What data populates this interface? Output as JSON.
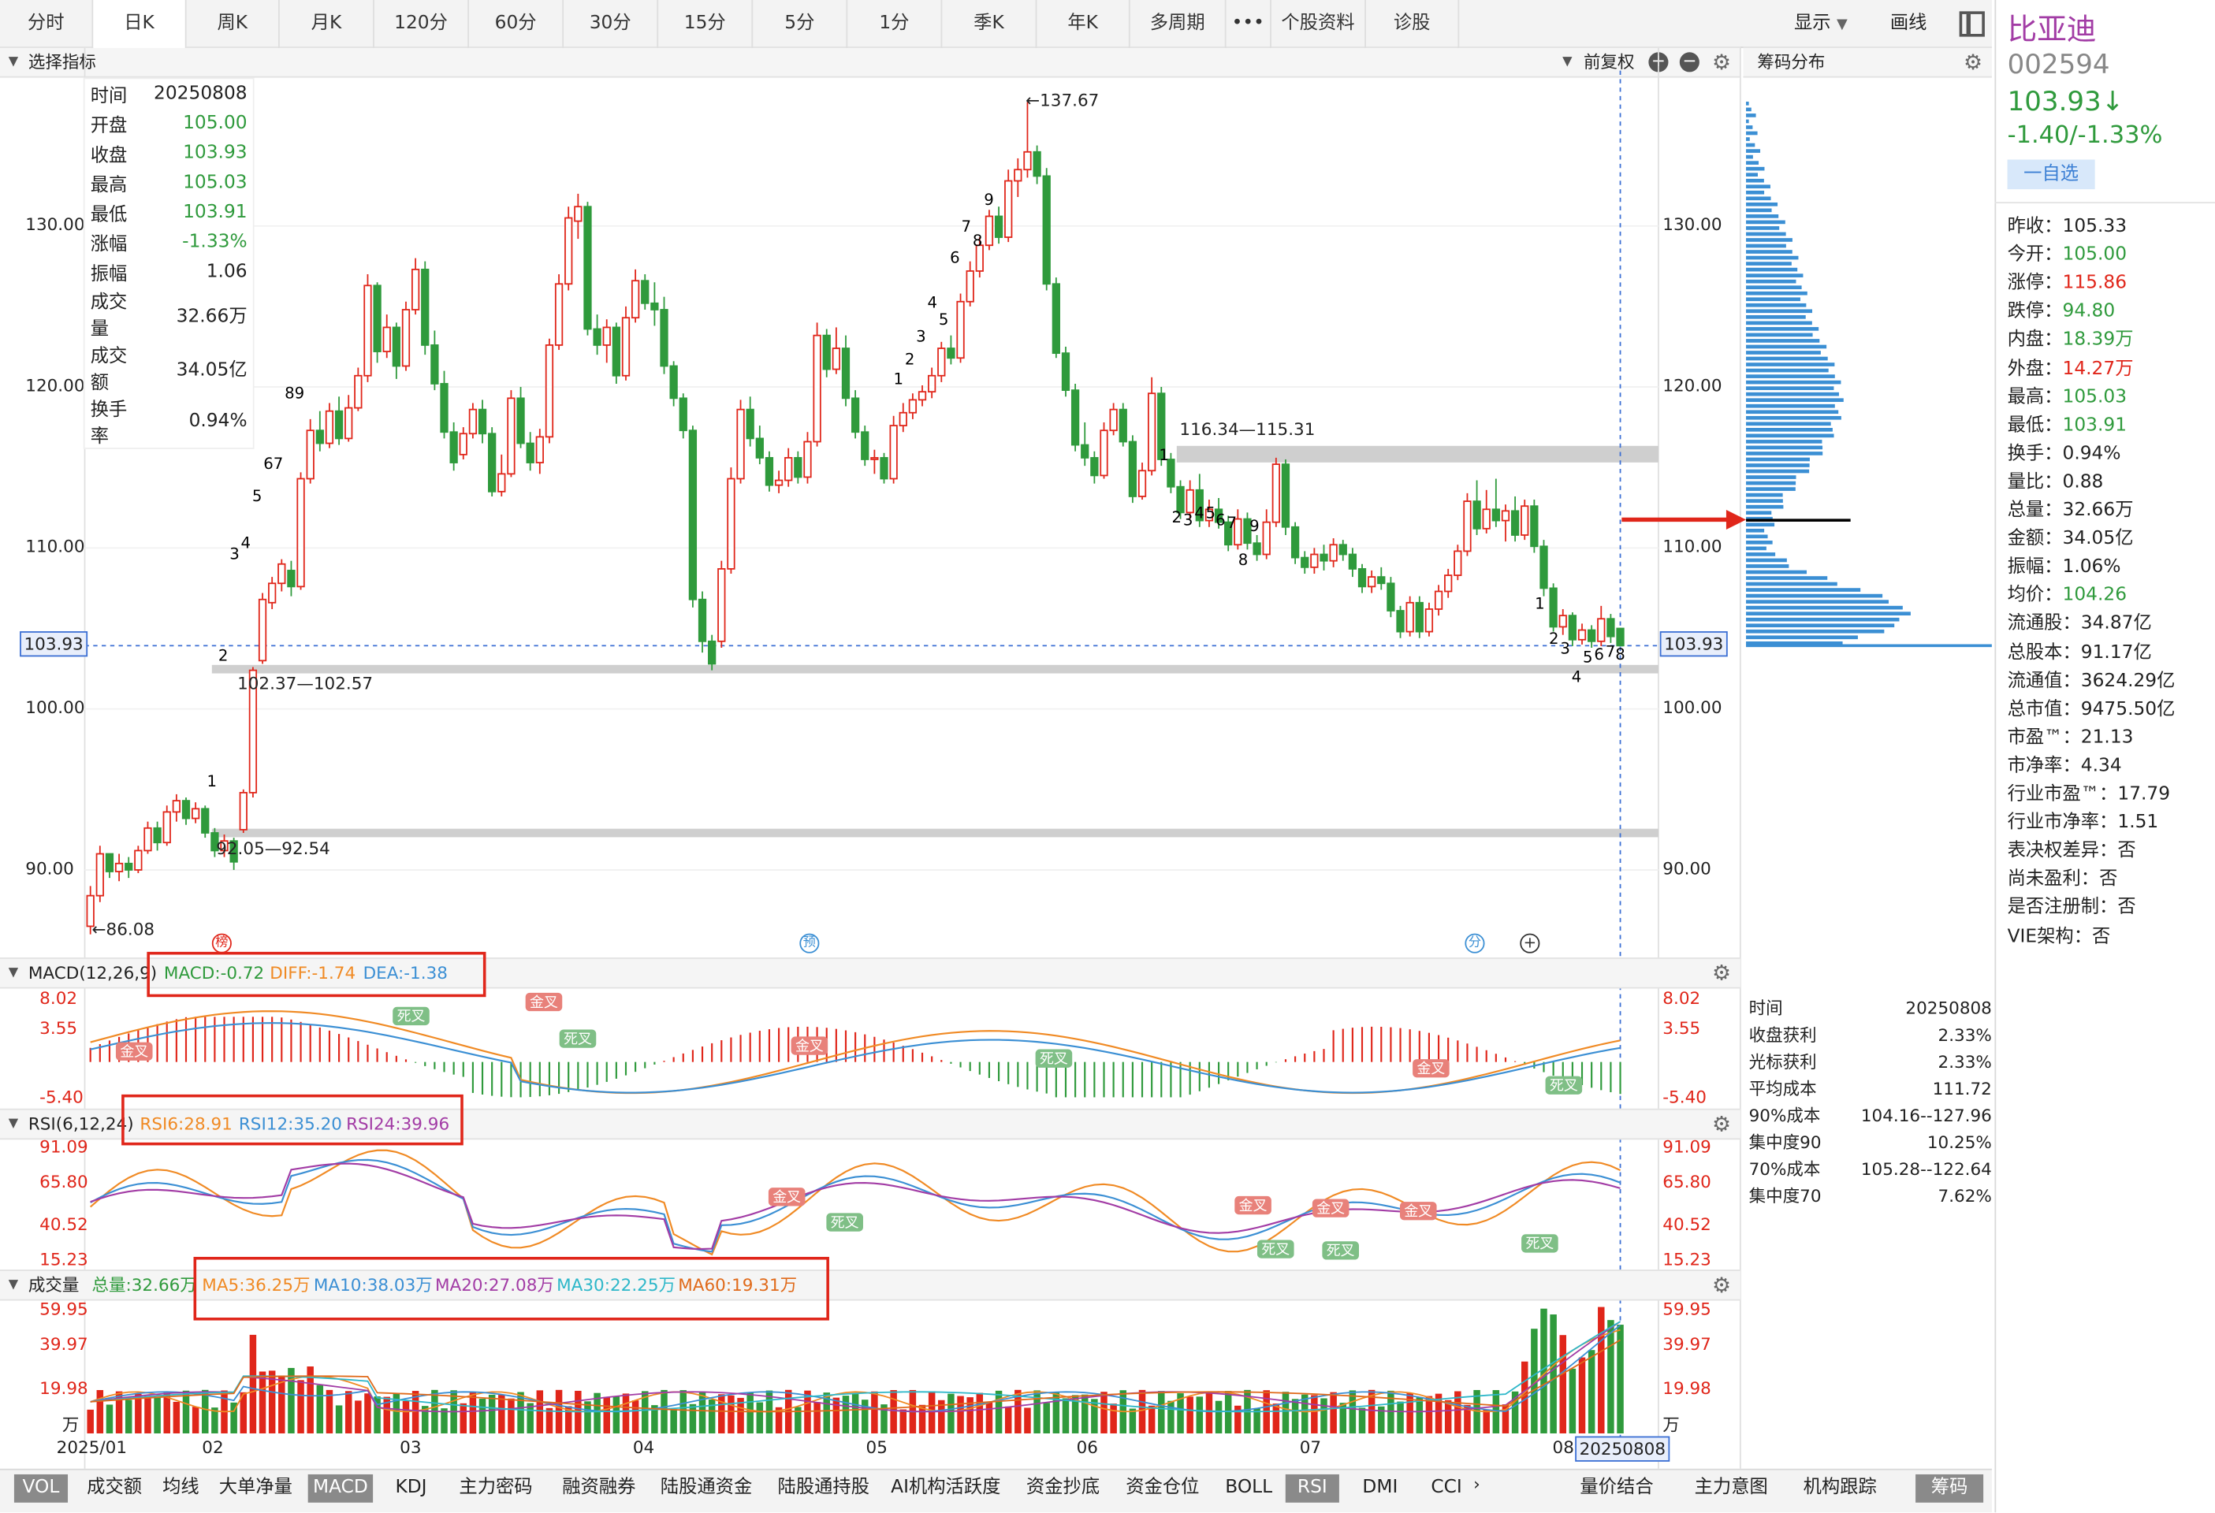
{
  "period_tabs": [
    "分时",
    "日K",
    "周K",
    "月K",
    "120分",
    "60分",
    "30分",
    "15分",
    "5分",
    "1分",
    "季K",
    "年K",
    "多周期",
    "•••",
    "个股资料",
    "诊股"
  ],
  "active_tab": "日K",
  "toolbar_right": {
    "display": "显示",
    "draw": "画线"
  },
  "main_header": {
    "indicator_select": "选择指标",
    "adjust": "前复权"
  },
  "chip_panel_title": "筹码分布",
  "stock": {
    "name": "比亚迪",
    "code": "002594",
    "price": "103.93↓",
    "change": "-1.40/-1.33%",
    "watch_button": "一自选",
    "name_color": "#a23ca5",
    "down_color": "#2f9a3c",
    "up_color": "#e0261a"
  },
  "stats": [
    {
      "label": "昨收：",
      "value": "105.33",
      "color": "#222"
    },
    {
      "label": "今开：",
      "value": "105.00",
      "color": "#2f9a3c"
    },
    {
      "label": "涨停：",
      "value": "115.86",
      "color": "#e0261a"
    },
    {
      "label": "跌停：",
      "value": "94.80",
      "color": "#2f9a3c"
    },
    {
      "label": "内盘：",
      "value": "18.39万",
      "color": "#2f9a3c"
    },
    {
      "label": "外盘：",
      "value": "14.27万",
      "color": "#e0261a"
    },
    {
      "label": "最高：",
      "value": "105.03",
      "color": "#2f9a3c"
    },
    {
      "label": "最低：",
      "value": "103.91",
      "color": "#2f9a3c"
    },
    {
      "label": "换手：",
      "value": "0.94%",
      "color": "#222"
    },
    {
      "label": "量比：",
      "value": "0.88",
      "color": "#222"
    },
    {
      "label": "总量：",
      "value": "32.66万",
      "color": "#222"
    },
    {
      "label": "金额：",
      "value": "34.05亿",
      "color": "#222"
    },
    {
      "label": "振幅：",
      "value": "1.06%",
      "color": "#222"
    },
    {
      "label": "均价：",
      "value": "104.26",
      "color": "#2f9a3c"
    },
    {
      "label": "流通股：",
      "value": "34.87亿",
      "color": "#222"
    },
    {
      "label": "总股本：",
      "value": "91.17亿",
      "color": "#222"
    },
    {
      "label": "流通值：",
      "value": "3624.29亿",
      "color": "#222"
    },
    {
      "label": "总市值：",
      "value": "9475.50亿",
      "color": "#222"
    },
    {
      "label": "市盈™：",
      "value": "21.13",
      "color": "#222"
    },
    {
      "label": "市净率：",
      "value": "4.34",
      "color": "#222"
    },
    {
      "label": "行业市盈™：",
      "value": "17.79",
      "color": "#222"
    },
    {
      "label": "行业市净率：",
      "value": "1.51",
      "color": "#222"
    },
    {
      "label": "表决权差异：",
      "value": "否",
      "color": "#222"
    },
    {
      "label": "尚未盈利：",
      "value": "否",
      "color": "#222"
    },
    {
      "label": "是否注册制：",
      "value": "否",
      "color": "#222"
    },
    {
      "label": "VIE架构：",
      "value": "否",
      "color": "#222"
    }
  ],
  "day_info": [
    {
      "label": "时间",
      "value": "20250808",
      "color": "#222"
    },
    {
      "label": "开盘",
      "value": "105.00",
      "color": "#2f9a3c"
    },
    {
      "label": "收盘",
      "value": "103.93",
      "color": "#2f9a3c"
    },
    {
      "label": "最高",
      "value": "105.03",
      "color": "#2f9a3c"
    },
    {
      "label": "最低",
      "value": "103.91",
      "color": "#2f9a3c"
    },
    {
      "label": "涨幅",
      "value": "-1.33%",
      "color": "#2f9a3c"
    },
    {
      "label": "振幅",
      "value": "1.06",
      "color": "#222"
    },
    {
      "label": "成交量",
      "value": "32.66万",
      "color": "#222"
    },
    {
      "label": "成交额",
      "value": "34.05亿",
      "color": "#222"
    },
    {
      "label": "换手率",
      "value": "0.94%",
      "color": "#222"
    }
  ],
  "chip_info": [
    {
      "label": "时间",
      "value": "20250808"
    },
    {
      "label": "收盘获利",
      "value": "2.33%"
    },
    {
      "label": "光标获利",
      "value": "2.33%"
    },
    {
      "label": "平均成本",
      "value": "111.72"
    },
    {
      "label": "90%成本",
      "value": "104.16--127.96"
    },
    {
      "label": "集中度90",
      "value": "10.25%"
    },
    {
      "label": "70%成本",
      "value": "105.28--122.64"
    },
    {
      "label": "集中度70",
      "value": "7.62%"
    }
  ],
  "price_axis": {
    "ticks": [
      "130.00",
      "120.00",
      "110.00",
      "100.00",
      "90.00"
    ],
    "current": "103.93",
    "high_label": "←137.67",
    "low_label": "←86.08"
  },
  "annotations": {
    "zone1": "116.34—115.31",
    "zone2": "102.37—102.57",
    "zone3": "92.05—92.54",
    "markers": [
      "榜",
      "预",
      "分",
      "+"
    ]
  },
  "macd": {
    "title": "MACD(12,26,9)",
    "macd": "MACD:-0.72",
    "diff": "DIFF:-1.74",
    "dea": "DEA:-1.38",
    "ticks": [
      "8.02",
      "3.55",
      "-5.40"
    ],
    "golden": "金叉",
    "dead": "死叉"
  },
  "rsi": {
    "title": "RSI(6,12,24)",
    "rsi6": "RSI6:28.91",
    "rsi12": "RSI12:35.20",
    "rsi24": "RSI24:39.96",
    "ticks": [
      "91.09",
      "65.80",
      "40.52",
      "15.23"
    ]
  },
  "volume": {
    "title": "成交量",
    "total": "总量:32.66万",
    "ma5": "MA5:36.25万",
    "ma10": "MA10:38.03万",
    "ma20": "MA20:27.08万",
    "ma30": "MA30:22.25万",
    "ma60": "MA60:19.31万",
    "ticks": [
      "59.95",
      "39.97",
      "19.98"
    ],
    "unit": "万"
  },
  "date_axis": [
    "2025/01",
    "02",
    "03",
    "04",
    "05",
    "06",
    "07",
    "08"
  ],
  "current_date": "20250808",
  "bottom_tabs": [
    "VOL",
    "成交额",
    "均线",
    "大单净量",
    "MACD",
    "KDJ",
    "主力密码",
    "融资融券",
    "陆股通资金",
    "陆股通持股",
    "AI机构活跃度",
    "资金抄底",
    "资金仓位",
    "BOLL",
    "RSI",
    "DMI",
    "CCI"
  ],
  "bottom_right_tabs": [
    "量价结合",
    "主力意图",
    "机构跟踪",
    "筹码"
  ],
  "chart_data": {
    "type": "candlestick",
    "y_range": [
      84,
      141
    ],
    "candles": [
      [
        86.5,
        88.4,
        86,
        89
      ],
      [
        88.4,
        91,
        88,
        91.5
      ],
      [
        91,
        89.9,
        89.5,
        91
      ],
      [
        89.9,
        90.4,
        89.3,
        91
      ],
      [
        90.4,
        90,
        89.5,
        90.8
      ],
      [
        90,
        91.2,
        89.8,
        91.5
      ],
      [
        91.2,
        92.6,
        91,
        93
      ],
      [
        92.6,
        91.7,
        91.2,
        93
      ],
      [
        91.7,
        93.6,
        91.5,
        94
      ],
      [
        93.6,
        94.3,
        93,
        94.7
      ],
      [
        94.3,
        93.2,
        92.8,
        94.5
      ],
      [
        93.2,
        93.8,
        92.9,
        94.2
      ],
      [
        93.8,
        92.3,
        92,
        94
      ],
      [
        92.3,
        91.2,
        90.8,
        92.6
      ],
      [
        91.2,
        91.8,
        90.8,
        92.2
      ],
      [
        91.8,
        90.5,
        90,
        92
      ],
      [
        92.5,
        94.8,
        92.3,
        95
      ],
      [
        94.8,
        102.4,
        94.5,
        102.6
      ],
      [
        103,
        106.8,
        102.8,
        107.2
      ],
      [
        106.6,
        107.8,
        106.2,
        108.2
      ],
      [
        107.8,
        109,
        107.3,
        109.3
      ],
      [
        108.6,
        107.6,
        107,
        109.2
      ],
      [
        107.6,
        114.3,
        107.4,
        114.7
      ],
      [
        114.3,
        117.3,
        114,
        118
      ],
      [
        117.3,
        116.5,
        116,
        118.5
      ],
      [
        116.5,
        118.5,
        116.2,
        119
      ],
      [
        118.5,
        116.8,
        116.4,
        119.4
      ],
      [
        116.8,
        118.7,
        116.6,
        119.5
      ],
      [
        118.7,
        120.7,
        118.5,
        121.2
      ],
      [
        120.7,
        126.3,
        120.3,
        127
      ],
      [
        126.3,
        122.2,
        121.5,
        126.5
      ],
      [
        122.2,
        123.7,
        121.8,
        124.5
      ],
      [
        123.7,
        121.3,
        120.5,
        124
      ],
      [
        121.3,
        124.8,
        121,
        125.3
      ],
      [
        124.8,
        127.3,
        124.5,
        128
      ],
      [
        127.3,
        122.6,
        122,
        127.8
      ],
      [
        122.6,
        120.2,
        119.8,
        123.5
      ],
      [
        120.2,
        117.2,
        116.8,
        121
      ],
      [
        117.2,
        115.3,
        114.8,
        117.8
      ],
      [
        115.8,
        117.1,
        115.5,
        117.5
      ],
      [
        117.1,
        118.6,
        116.8,
        119
      ],
      [
        118.6,
        117.1,
        116.5,
        119.2
      ],
      [
        117.1,
        113.5,
        113.2,
        117.5
      ],
      [
        113.5,
        114.6,
        113.2,
        115.8
      ],
      [
        114.6,
        119.3,
        114.4,
        119.8
      ],
      [
        119.3,
        116.5,
        116.2,
        120
      ],
      [
        116.5,
        115.3,
        114.8,
        117.2
      ],
      [
        115.3,
        116.9,
        114.6,
        117.4
      ],
      [
        116.9,
        122.6,
        116.5,
        123
      ],
      [
        122.6,
        126.4,
        122.3,
        127
      ],
      [
        126.4,
        130.5,
        126,
        131.2
      ],
      [
        130.3,
        131.2,
        129.2,
        132
      ],
      [
        131.2,
        123.6,
        123.2,
        131.5
      ],
      [
        123.6,
        122.6,
        122,
        124.5
      ],
      [
        122.6,
        123.7,
        121.5,
        124.2
      ],
      [
        123.7,
        120.7,
        120.2,
        124
      ],
      [
        120.7,
        124.3,
        120.4,
        125
      ],
      [
        124.3,
        126.6,
        124,
        127.3
      ],
      [
        126.6,
        125.2,
        124.8,
        127
      ],
      [
        125.2,
        124.8,
        123.8,
        126.5
      ],
      [
        124.8,
        121.3,
        120.8,
        125.6
      ],
      [
        121.3,
        119.3,
        118.8,
        121.6
      ],
      [
        119.3,
        117.3,
        116.8,
        119.6
      ],
      [
        117.3,
        106.8,
        106.3,
        117.6
      ],
      [
        106.8,
        104.2,
        103.5,
        107.3
      ],
      [
        104.2,
        102.8,
        102.4,
        104.6
      ],
      [
        104.2,
        108.7,
        103.8,
        109.2
      ],
      [
        108.7,
        114.3,
        108.4,
        115
      ],
      [
        114.3,
        118.6,
        114,
        119.2
      ],
      [
        118.6,
        116.8,
        116.3,
        119.4
      ],
      [
        116.8,
        115.6,
        115.2,
        117.6
      ],
      [
        115.6,
        113.9,
        113.5,
        116
      ],
      [
        113.9,
        114.2,
        113.4,
        114.8
      ],
      [
        114.2,
        115.6,
        113.8,
        116.2
      ],
      [
        115.6,
        114.4,
        114,
        116
      ],
      [
        114.4,
        116.6,
        114,
        117.2
      ],
      [
        116.6,
        123.2,
        116.3,
        124
      ],
      [
        123.2,
        121.1,
        120.6,
        123.6
      ],
      [
        121.1,
        122.4,
        120.8,
        123.7
      ],
      [
        122.4,
        119.3,
        118.8,
        123.2
      ],
      [
        119.3,
        117.2,
        116.8,
        119.8
      ],
      [
        117.2,
        115.5,
        115.1,
        117.6
      ],
      [
        115.5,
        115.6,
        114.6,
        116.1
      ],
      [
        115.6,
        114.3,
        114,
        115.9
      ],
      [
        114.3,
        117.6,
        114,
        118.2
      ],
      [
        117.6,
        118.4,
        117.2,
        119
      ],
      [
        118.4,
        119.2,
        118,
        119.6
      ],
      [
        119.2,
        119.7,
        118.8,
        120.1
      ],
      [
        119.7,
        120.7,
        119.3,
        121.2
      ],
      [
        120.7,
        122.4,
        120.3,
        122.8
      ],
      [
        122.4,
        121.8,
        121.4,
        123.2
      ],
      [
        121.8,
        125.3,
        121.5,
        125.8
      ],
      [
        125.3,
        127.2,
        125,
        127.8
      ],
      [
        127.2,
        128.8,
        126.8,
        129.3
      ],
      [
        128.8,
        130.6,
        128.5,
        131
      ],
      [
        130.6,
        129.3,
        128.9,
        131.2
      ],
      [
        129.3,
        132.8,
        129,
        133.5
      ],
      [
        132.8,
        133.5,
        131.8,
        134.2
      ],
      [
        133.5,
        134.6,
        133,
        137.7
      ],
      [
        134.6,
        133.1,
        132.6,
        135
      ],
      [
        133.1,
        126.4,
        126,
        133.6
      ],
      [
        126.4,
        122.1,
        121.8,
        126.8
      ],
      [
        122.1,
        119.8,
        119.4,
        122.5
      ],
      [
        119.8,
        116.4,
        116,
        120.2
      ],
      [
        116.4,
        115.6,
        115.1,
        117.8
      ],
      [
        115.6,
        114.5,
        114,
        116
      ],
      [
        114.5,
        117.3,
        114.3,
        117.8
      ],
      [
        117.3,
        118.6,
        117,
        119
      ],
      [
        118.6,
        116.6,
        116.3,
        119
      ],
      [
        116.6,
        113.2,
        112.8,
        117
      ],
      [
        113.2,
        114.8,
        113,
        115.3
      ],
      [
        114.8,
        119.6,
        114.5,
        120.6
      ],
      [
        119.6,
        115.5,
        115.1,
        120
      ],
      [
        115.5,
        113.8,
        113.4,
        115.9
      ],
      [
        113.8,
        112.2,
        111.8,
        114.2
      ],
      [
        112.2,
        113.6,
        111.8,
        114.2
      ],
      [
        113.6,
        111.7,
        111.3,
        114.6
      ],
      [
        111.7,
        112.4,
        111.3,
        113
      ],
      [
        112.4,
        111.6,
        111.2,
        113.1
      ],
      [
        111.6,
        110.2,
        109.8,
        112
      ],
      [
        110.2,
        111.8,
        109.9,
        112.4
      ],
      [
        111.8,
        110.3,
        109.9,
        112.2
      ],
      [
        110.3,
        109.6,
        109.2,
        110.8
      ],
      [
        109.6,
        111.6,
        109.3,
        112.4
      ],
      [
        111.6,
        115.2,
        111.3,
        115.6
      ],
      [
        115.2,
        111.3,
        110.8,
        115.5
      ],
      [
        111.3,
        109.4,
        109,
        111.6
      ],
      [
        109.4,
        108.8,
        108.4,
        109.8
      ],
      [
        108.8,
        109.6,
        108.4,
        110
      ],
      [
        109.6,
        109.2,
        108.6,
        110.2
      ],
      [
        109.2,
        110.2,
        108.8,
        110.6
      ],
      [
        110.2,
        109.6,
        109.2,
        110.5
      ],
      [
        109.6,
        108.7,
        108.2,
        110
      ],
      [
        108.7,
        107.6,
        107.2,
        109
      ],
      [
        107.6,
        108.2,
        107.2,
        108.6
      ],
      [
        108.2,
        107.8,
        107.4,
        108.8
      ],
      [
        107.8,
        106.1,
        105.7,
        108.2
      ],
      [
        106.1,
        104.8,
        104.4,
        106.4
      ],
      [
        104.8,
        106.6,
        104.5,
        107
      ],
      [
        106.6,
        104.8,
        104.4,
        107
      ],
      [
        104.8,
        106.2,
        104.5,
        106.6
      ],
      [
        106.2,
        107.3,
        105.8,
        107.7
      ],
      [
        107.3,
        108.3,
        106.9,
        108.7
      ],
      [
        108.3,
        109.8,
        108,
        110.2
      ],
      [
        109.8,
        112.9,
        109.5,
        113.4
      ],
      [
        112.9,
        111.2,
        110.8,
        114.2
      ],
      [
        111.2,
        112.4,
        110.9,
        113.6
      ],
      [
        112.4,
        111.7,
        111.3,
        114.3
      ],
      [
        111.7,
        112.3,
        110.4,
        112.7
      ],
      [
        112.3,
        110.8,
        110.4,
        113.2
      ],
      [
        110.8,
        112.6,
        110.5,
        113
      ],
      [
        112.6,
        110.1,
        109.7,
        113
      ],
      [
        110.1,
        107.5,
        107,
        110.5
      ],
      [
        107.5,
        105.1,
        104.8,
        107.8
      ],
      [
        105.1,
        105.8,
        104.6,
        106.2
      ],
      [
        105.8,
        104.3,
        103.9,
        106
      ],
      [
        104.3,
        104.9,
        104,
        105.3
      ],
      [
        104.9,
        104.2,
        103.8,
        105.2
      ],
      [
        104.2,
        105.6,
        103.9,
        106.4
      ],
      [
        105.6,
        104.5,
        104.1,
        105.9
      ],
      [
        105,
        103.93,
        103.91,
        105.03
      ]
    ],
    "chips": "price distribution histogram",
    "support_zones": [
      [
        115.31,
        116.34
      ],
      [
        102.37,
        102.57
      ],
      [
        92.05,
        92.54
      ]
    ],
    "avg_cost": 111.72
  }
}
